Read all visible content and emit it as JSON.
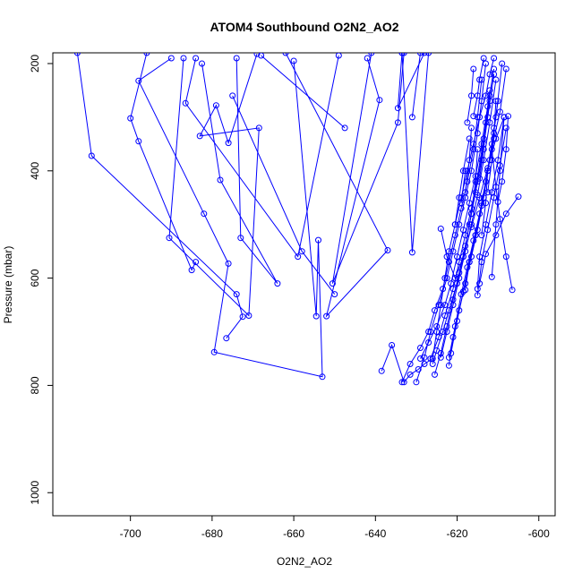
{
  "chart_data": {
    "type": "line",
    "title": "ATOM4 Southbound O2N2_AO2",
    "xlabel": "O2N2_AO2",
    "ylabel": "Pressure (mbar)",
    "xlim": [
      -719,
      -596
    ],
    "ylim": [
      1043,
      180
    ],
    "y_reversed": true,
    "x_ticks": [
      -700,
      -680,
      -660,
      -640,
      -620,
      -600
    ],
    "y_ticks": [
      200,
      400,
      600,
      800,
      1000
    ],
    "grid": false,
    "series_color": "#0000ff",
    "series": [
      {
        "x": [
          -713,
          -709.5,
          -674,
          -672.5,
          -676.5
        ],
        "y": [
          180,
          372,
          630,
          672,
          712
        ]
      },
      {
        "x": [
          -696,
          -700,
          -698,
          -685,
          -684
        ],
        "y": [
          180,
          302,
          345,
          585,
          570
        ]
      },
      {
        "x": [
          -690,
          -698,
          -682,
          -676,
          -679.5,
          -653,
          -654,
          -654.5,
          -660
        ],
        "y": [
          190,
          232,
          480,
          573,
          738,
          784,
          529,
          671,
          195
        ]
      },
      {
        "x": [
          -687,
          -690.5,
          -671,
          -668.5,
          -683,
          -679,
          -676,
          -669
        ],
        "y": [
          190,
          525,
          670,
          320,
          335,
          278,
          348,
          182
        ]
      },
      {
        "x": [
          -682.5,
          -678,
          -664,
          -673,
          -674
        ],
        "y": [
          200,
          417,
          610,
          525,
          190
        ]
      },
      {
        "x": [
          -684,
          -686.5,
          -659,
          -649
        ],
        "y": [
          190,
          274,
          560,
          185
        ]
      },
      {
        "x": [
          -675,
          -658,
          -650
        ],
        "y": [
          260,
          550,
          630
        ]
      },
      {
        "x": [
          -668,
          -647.5
        ],
        "y": [
          185,
          320
        ]
      },
      {
        "x": [
          -662,
          -637,
          -652,
          -639,
          -642
        ],
        "y": [
          180,
          548,
          671,
          268,
          190
        ]
      },
      {
        "x": [
          -641,
          -650.5,
          -634.5,
          -633
        ],
        "y": [
          180,
          610,
          310,
          180
        ]
      },
      {
        "x": [
          -633.5,
          -634.5,
          -628
        ],
        "y": [
          180,
          283,
          180
        ]
      },
      {
        "x": [
          -633.5,
          -631,
          -627
        ],
        "y": [
          180,
          552,
          180
        ]
      },
      {
        "x": [
          -629,
          -631
        ],
        "y": [
          180,
          300
        ]
      },
      {
        "x": [
          -638.5,
          -636,
          -633,
          -631.5,
          -629.5,
          -628,
          -626,
          -625,
          -624,
          -623,
          -622,
          -620.5,
          -619,
          -617.5,
          -616,
          -614.5,
          -613,
          -612,
          -611
        ],
        "y": [
          773,
          725,
          794,
          780,
          770,
          760,
          750,
          700,
          650,
          600,
          550,
          500,
          450,
          400,
          350,
          300,
          260,
          220,
          190
        ]
      },
      {
        "x": [
          -633.5,
          -631.5,
          -629,
          -627,
          -625.5,
          -623.5,
          -622,
          -620.5,
          -619,
          -617.5,
          -616,
          -615,
          -614
        ],
        "y": [
          794,
          760,
          730,
          700,
          660,
          620,
          570,
          520,
          470,
          420,
          360,
          300,
          230
        ]
      },
      {
        "x": [
          -630,
          -628,
          -626.5,
          -624.5,
          -622.5,
          -621,
          -619.5,
          -618,
          -616.5,
          -615,
          -614,
          -613
        ],
        "y": [
          794,
          748,
          700,
          650,
          600,
          550,
          500,
          450,
          400,
          330,
          270,
          200
        ]
      },
      {
        "x": [
          -629,
          -627,
          -625,
          -623,
          -621.5,
          -620,
          -618.5,
          -617,
          -615.5,
          -614,
          -612.5,
          -611
        ],
        "y": [
          750,
          720,
          690,
          650,
          610,
          560,
          510,
          460,
          410,
          350,
          280,
          210
        ]
      },
      {
        "x": [
          -626.5,
          -624.5,
          -623,
          -621,
          -619.5,
          -618,
          -616.5,
          -615,
          -613.5,
          -612
        ],
        "y": [
          750,
          710,
          670,
          620,
          570,
          520,
          470,
          410,
          340,
          260
        ]
      },
      {
        "x": [
          -626,
          -625,
          -623.5,
          -622,
          -620,
          -618.5,
          -617,
          -615.5,
          -614,
          -612.5,
          -611
        ],
        "y": [
          760,
          735,
          700,
          660,
          610,
          560,
          500,
          440,
          380,
          300,
          220
        ]
      },
      {
        "x": [
          -625.5,
          -624,
          -622.5,
          -621,
          -619.5,
          -618,
          -616.5,
          -615,
          -613.5,
          -612
        ],
        "y": [
          780,
          740,
          690,
          640,
          590,
          540,
          480,
          420,
          350,
          270
        ]
      },
      {
        "x": [
          -624,
          -622.5,
          -621,
          -619.5,
          -618,
          -616.5,
          -615,
          -613.5,
          -612,
          -610.5
        ],
        "y": [
          748,
          700,
          650,
          600,
          550,
          500,
          445,
          380,
          310,
          230
        ]
      },
      {
        "x": [
          -622,
          -621,
          -619.5,
          -618,
          -616.5,
          -615,
          -613.5,
          -612,
          -610.5,
          -609
        ],
        "y": [
          763,
          710,
          660,
          610,
          560,
          510,
          450,
          380,
          300,
          200
        ]
      },
      {
        "x": [
          -622,
          -620.5,
          -619,
          -617.5,
          -616,
          -614.5,
          -613,
          -611.5,
          -610
        ],
        "y": [
          748,
          690,
          630,
          580,
          530,
          480,
          420,
          350,
          270
        ]
      },
      {
        "x": [
          -621.5,
          -620,
          -618.5,
          -617,
          -615.5,
          -614,
          -612.5,
          -611
        ],
        "y": [
          740,
          680,
          625,
          570,
          520,
          465,
          400,
          320
        ]
      },
      {
        "x": [
          -624,
          -622.5,
          -620.5,
          -618.5,
          -616.5,
          -614.5,
          -612.5,
          -610.5,
          -608.5
        ],
        "y": [
          508,
          560,
          600,
          560,
          505,
          450,
          395,
          340,
          300
        ]
      },
      {
        "x": [
          -618,
          -617,
          -615.5,
          -614,
          -612.5,
          -611,
          -609.5,
          -608
        ],
        "y": [
          622,
          570,
          520,
          460,
          400,
          340,
          290,
          210
        ]
      },
      {
        "x": [
          -615,
          -614.5,
          -613,
          -611.5,
          -610,
          -608.5
        ],
        "y": [
          620,
          560,
          500,
          440,
          380,
          300
        ]
      },
      {
        "x": [
          -615,
          -614,
          -612.5,
          -611,
          -609.5,
          -608
        ],
        "y": [
          632,
          570,
          510,
          450,
          390,
          320
        ]
      },
      {
        "x": [
          -605,
          -608,
          -610.5,
          -613,
          -614.5
        ],
        "y": [
          448,
          480,
          520,
          555,
          610
        ]
      },
      {
        "x": [
          -606.5,
          -608,
          -609.5,
          -610.5,
          -611.5
        ],
        "y": [
          622,
          560,
          490,
          430,
          360
        ]
      },
      {
        "x": [
          -611.5,
          -610.5,
          -609.5,
          -608.5
        ],
        "y": [
          598,
          500,
          400,
          300
        ]
      },
      {
        "x": [
          -610,
          -609,
          -608,
          -607.5
        ],
        "y": [
          458,
          420,
          360,
          298
        ]
      },
      {
        "x": [
          -612.5,
          -611.5,
          -611,
          -610.5
        ],
        "y": [
          440,
          380,
          330,
          270
        ]
      },
      {
        "x": [
          -614.5,
          -613.5,
          -613,
          -612
        ],
        "y": [
          414,
          360,
          310,
          250
        ]
      },
      {
        "x": [
          -616,
          -615,
          -614.5,
          -613.5
        ],
        "y": [
          298,
          260,
          230,
          190
        ]
      },
      {
        "x": [
          -617.5,
          -616.5,
          -616
        ],
        "y": [
          310,
          260,
          210
        ]
      },
      {
        "x": [
          -614,
          -613,
          -612.5
        ],
        "y": [
          520,
          460,
          400
        ]
      },
      {
        "x": [
          -618,
          -617,
          -616.5
        ],
        "y": [
          440,
          380,
          320
        ]
      },
      {
        "x": [
          -616.5,
          -615.5,
          -615
        ],
        "y": [
          480,
          420,
          360
        ]
      },
      {
        "x": [
          -619,
          -618
        ],
        "y": [
          460,
          400
        ]
      },
      {
        "x": [
          -620.5,
          -619.5,
          -618.5,
          -617
        ],
        "y": [
          500,
          450,
          400,
          340
        ]
      }
    ]
  }
}
